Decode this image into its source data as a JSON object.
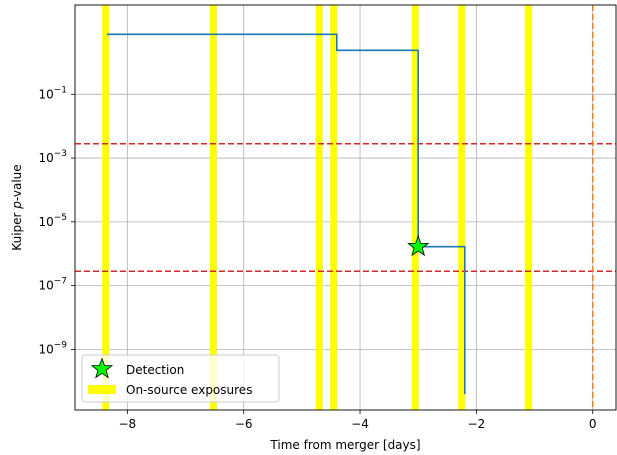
{
  "chart_data": {
    "type": "line",
    "xlabel": "Time from merger [days]",
    "ylabel_prefix": "Kuiper ",
    "ylabel_italic": "p",
    "ylabel_suffix": "-value",
    "xlim": [
      -8.9,
      0.4
    ],
    "ylim_log10": [
      -10.9,
      1.8
    ],
    "yscale": "log",
    "grid": true,
    "legend_placement": "lower-left",
    "x_ticks": [
      -8,
      -6,
      -4,
      -2,
      0
    ],
    "x_tick_labels": [
      "−8",
      "−6",
      "−4",
      "−2",
      "0"
    ],
    "y_ticks_exp": [
      -1,
      -3,
      -5,
      -7,
      -9
    ],
    "y_tick_base": "10",
    "y_tick_exps": [
      "−1",
      "−3",
      "−5",
      "−7",
      "−9"
    ],
    "step_series": {
      "x": [
        -8.35,
        -4.4,
        -4.4,
        -3.0,
        -3.0,
        -2.2,
        -2.2
      ],
      "y_log10": [
        0.88,
        0.88,
        0.38,
        0.38,
        -5.78,
        -5.78,
        -10.4
      ]
    },
    "onsource_exposures_x": [
      -8.37,
      -6.52,
      -4.7,
      -4.45,
      -3.05,
      -2.25,
      -1.1
    ],
    "threshold_lines_log10": [
      -2.55,
      -6.55
    ],
    "merger_time_x": 0,
    "detection": {
      "x": -3.0,
      "y_log10": -5.78
    },
    "legend": [
      {
        "label": "Detection",
        "marker": "star"
      },
      {
        "label": "On-source exposures",
        "marker": "band"
      }
    ],
    "colors": {
      "step": "#1f77b4",
      "exposure": "#ffff00",
      "threshold": "#d62728",
      "merger": "#ff7f0e",
      "detection": "#00ff00",
      "grid": "#b0b0b0"
    }
  }
}
